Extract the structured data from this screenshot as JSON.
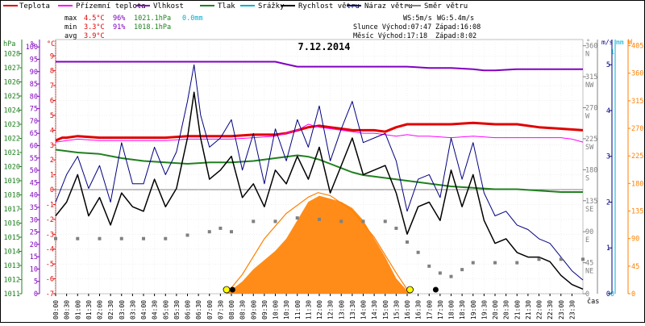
{
  "colors": {
    "temperature": "#e00000",
    "ground_temperature": "#ff00ff",
    "humidity": "#8000c0",
    "pressure": "#208020",
    "rain": "#00b0d0",
    "wind_speed": "#000000",
    "wind_gust": "#000080",
    "wind_dir": "#808080",
    "sun": "#ff8000",
    "zero_line": "#808080"
  },
  "legend": [
    {
      "label": "Teplota",
      "color": "#e00000"
    },
    {
      "label": "Přízemní teplota",
      "color": "#ff00ff"
    },
    {
      "label": "Vlhkost",
      "color": "#8000c0"
    },
    {
      "label": "Tlak",
      "color": "#208020"
    },
    {
      "label": "Srážky",
      "color": "#00b0d0"
    },
    {
      "label": "Rychlost větru",
      "color": "#000000"
    },
    {
      "label": "Náraz větru",
      "color": "#000080"
    },
    {
      "label": "Směr větru",
      "color": "#808080"
    }
  ],
  "stats": {
    "max_label": "max",
    "max_temp": "4.5°C",
    "max_hum": "96%",
    "max_press": "1021.1hPa",
    "max_rain": "0.0mm",
    "min_label": "min",
    "min_temp": "3.3°C",
    "min_hum": "91%",
    "min_press": "1018.1hPa",
    "avg_label": "avg",
    "avg_temp": "3.9°C"
  },
  "sun_info": {
    "ws": "WS:5m/s",
    "wg": "WG:5.4m/s",
    "sunrise": "Slunce Východ:07:47",
    "sunset": "Západ:16:08",
    "moonrise": "Měsíc Východ:17:18",
    "moonset": "Západ:8:02"
  },
  "date_label": "7.12.2014",
  "axis_labels": {
    "hpa": "hPa",
    "pct": "%",
    "degc": "°C",
    "deg": "°",
    "ms": "m/s",
    "mm": "mm",
    "wm2": "W",
    "time": "čas"
  },
  "chart_data": {
    "type": "line",
    "x_unit": "hour",
    "x_range": [
      0,
      24
    ],
    "x_tick_labels": [
      "00:00",
      "00:30",
      "01:00",
      "01:30",
      "02:00",
      "02:30",
      "03:00",
      "03:30",
      "04:00",
      "04:30",
      "05:00",
      "05:30",
      "06:00",
      "06:30",
      "07:00",
      "07:30",
      "08:00",
      "08:30",
      "09:00",
      "09:30",
      "10:00",
      "10:30",
      "11:00",
      "11:30",
      "12:00",
      "12:30",
      "13:00",
      "13:30",
      "14:00",
      "14:30",
      "15:00",
      "15:30",
      "16:00",
      "16:30",
      "17:00",
      "17:30",
      "18:00",
      "18:30",
      "19:00",
      "19:30",
      "20:00",
      "20:30",
      "21:00",
      "21:30",
      "22:00",
      "22:30",
      "23:00",
      "23:30"
    ],
    "axes": {
      "pressure_hpa": {
        "range": [
          1011,
          1029
        ],
        "ticks": [
          1011,
          1012,
          1013,
          1014,
          1015,
          1016,
          1017,
          1018,
          1019,
          1020,
          1021,
          1022,
          1023,
          1024,
          1025,
          1026,
          1027,
          1028
        ]
      },
      "humidity_pct": {
        "range": [
          0,
          103
        ],
        "ticks": [
          0,
          5,
          10,
          15,
          20,
          25,
          30,
          35,
          40,
          45,
          50,
          55,
          60,
          65,
          70,
          75,
          80,
          85,
          90,
          95,
          100
        ]
      },
      "temp_c": {
        "range": [
          -7,
          10.1
        ],
        "ticks": [
          -7,
          -6,
          -5,
          -4,
          -3,
          -2,
          -1,
          0,
          1,
          2,
          3,
          4,
          5,
          6,
          7,
          8,
          9
        ]
      },
      "wind_dir_deg": {
        "range": [
          0,
          369
        ],
        "ticks": [
          {
            "v": 0,
            "label": "0"
          },
          {
            "v": 45,
            "label": "45"
          },
          {
            "v": 90,
            "label": "90"
          },
          {
            "v": 135,
            "label": "135"
          },
          {
            "v": 180,
            "label": "180"
          },
          {
            "v": 225,
            "label": "225"
          },
          {
            "v": 270,
            "label": "270"
          },
          {
            "v": 315,
            "label": "315"
          },
          {
            "v": 360,
            "label": "360"
          }
        ],
        "compass": [
          {
            "v": 45,
            "label": "NE"
          },
          {
            "v": 90,
            "label": "E"
          },
          {
            "v": 135,
            "label": "SE"
          },
          {
            "v": 180,
            "label": "S"
          },
          {
            "v": 225,
            "label": "SW"
          },
          {
            "v": 270,
            "label": "W"
          },
          {
            "v": 315,
            "label": "NW"
          },
          {
            "v": 360,
            "label": "N"
          }
        ]
      },
      "wind_ms": {
        "range": [
          0,
          5.55
        ],
        "ticks": [
          0,
          1,
          2,
          3,
          4,
          5
        ]
      },
      "rain_mm": {
        "ticks": [
          {
            "v": 0,
            "label": "0"
          },
          {
            "v": 1,
            "label": "1"
          }
        ]
      },
      "solar_w": {
        "range": [
          0,
          415
        ],
        "ticks": [
          0,
          45,
          90,
          135,
          180,
          225,
          270,
          315,
          360,
          405
        ]
      }
    },
    "series": [
      {
        "name": "Teplota",
        "axis": "temp_c",
        "color": "#e00000",
        "width": 3,
        "x": [
          0,
          0.3,
          0.5,
          1,
          2,
          3,
          4,
          5,
          6,
          7,
          8,
          9,
          10,
          10.5,
          11,
          11.5,
          12,
          12.5,
          13,
          13.5,
          14,
          14.5,
          15,
          15.5,
          16,
          16.5,
          17,
          18,
          19,
          20,
          21,
          22,
          23,
          24
        ],
        "y": [
          3.3,
          3.5,
          3.5,
          3.6,
          3.5,
          3.5,
          3.5,
          3.5,
          3.6,
          3.6,
          3.6,
          3.7,
          3.7,
          3.8,
          4.0,
          4.2,
          4.3,
          4.2,
          4.1,
          4.0,
          4.0,
          4.0,
          3.9,
          4.2,
          4.4,
          4.4,
          4.4,
          4.4,
          4.5,
          4.4,
          4.4,
          4.2,
          4.1,
          4.0
        ]
      },
      {
        "name": "Přízemní teplota",
        "axis": "temp_c",
        "color": "#ff00ff",
        "width": 1,
        "x": [
          0,
          0.5,
          1,
          2,
          3,
          4,
          5,
          6,
          7,
          8,
          9,
          10,
          10.5,
          11,
          11.5,
          12,
          12.5,
          13,
          13.5,
          14,
          14.5,
          15,
          15.5,
          16,
          16.5,
          17,
          18,
          19,
          20,
          21,
          22,
          23,
          23.5,
          24
        ],
        "y": [
          3.2,
          3.3,
          3.4,
          3.3,
          3.3,
          3.3,
          3.3,
          3.4,
          3.4,
          3.4,
          3.5,
          3.6,
          3.8,
          4.0,
          4.4,
          4.2,
          4.1,
          4.0,
          3.9,
          3.8,
          3.8,
          3.7,
          3.6,
          3.7,
          3.6,
          3.6,
          3.5,
          3.6,
          3.5,
          3.5,
          3.5,
          3.5,
          3.4,
          3.2
        ]
      },
      {
        "name": "Vlhkost",
        "axis": "humidity_pct",
        "color": "#8000c0",
        "width": 2,
        "x": [
          0,
          1,
          2,
          3,
          4,
          5,
          6,
          7,
          8,
          9,
          10,
          10.5,
          11,
          11.5,
          12,
          12.5,
          13,
          14,
          15,
          15.5,
          16,
          17,
          18,
          19,
          19.5,
          20,
          21,
          22,
          23,
          24
        ],
        "y": [
          94,
          94,
          94,
          94,
          94,
          94,
          94,
          94,
          94,
          94,
          94,
          93,
          92,
          92,
          92,
          92,
          92,
          92,
          92,
          92,
          92,
          91.5,
          91.5,
          91,
          90.5,
          90.5,
          91,
          91,
          91,
          91
        ]
      },
      {
        "name": "Tlak",
        "axis": "pressure_hpa",
        "color": "#208020",
        "width": 2,
        "x": [
          0,
          1,
          2,
          3,
          4,
          5,
          6,
          7,
          8,
          9,
          10,
          10.5,
          11,
          11.5,
          12,
          12.5,
          13,
          13.5,
          14,
          15,
          16,
          17,
          18,
          19,
          20,
          21,
          22,
          23,
          24
        ],
        "y": [
          1021.2,
          1021,
          1020.9,
          1020.6,
          1020.4,
          1020.3,
          1020.2,
          1020.3,
          1020.3,
          1020.4,
          1020.6,
          1020.7,
          1020.8,
          1020.7,
          1020.5,
          1020.2,
          1019.9,
          1019.6,
          1019.4,
          1019.2,
          1019.0,
          1018.8,
          1018.6,
          1018.5,
          1018.4,
          1018.4,
          1018.3,
          1018.2,
          1018.2
        ]
      },
      {
        "name": "Rychlost větru",
        "axis": "wind_ms",
        "color": "#000000",
        "width": 1.5,
        "x": [
          0,
          0.5,
          1,
          1.5,
          2,
          2.5,
          3,
          3.5,
          4,
          4.5,
          5,
          5.5,
          6,
          6.3,
          6.6,
          7,
          7.5,
          8,
          8.5,
          9,
          9.5,
          10,
          10.5,
          11,
          11.5,
          12,
          12.5,
          13,
          13.5,
          14,
          14.5,
          15,
          15.5,
          16,
          16.5,
          17,
          17.5,
          18,
          18.5,
          19,
          19.5,
          20,
          20.5,
          21,
          21.5,
          22,
          22.5,
          23,
          23.5,
          24
        ],
        "y": [
          1.7,
          2.0,
          2.6,
          1.7,
          2.1,
          1.5,
          2.2,
          1.9,
          1.8,
          2.5,
          1.9,
          2.3,
          3.4,
          4.4,
          3.4,
          2.5,
          2.7,
          3.0,
          2.1,
          2.4,
          1.9,
          2.7,
          2.4,
          3.0,
          2.5,
          3.2,
          2.2,
          2.8,
          3.4,
          2.6,
          2.7,
          2.8,
          2.2,
          1.3,
          1.9,
          2.0,
          1.6,
          2.7,
          1.9,
          2.6,
          1.6,
          1.1,
          1.2,
          0.9,
          0.8,
          0.8,
          0.7,
          0.4,
          0.2,
          0.1
        ]
      },
      {
        "name": "Náraz větru",
        "axis": "wind_ms",
        "color": "#000080",
        "width": 1,
        "x": [
          0,
          0.5,
          1,
          1.5,
          2,
          2.5,
          3,
          3.5,
          4,
          4.5,
          5,
          5.5,
          6,
          6.3,
          6.6,
          7,
          7.5,
          8,
          8.5,
          9,
          9.5,
          10,
          10.5,
          11,
          11.5,
          12,
          12.5,
          13,
          13.5,
          14,
          14.5,
          15,
          15.5,
          16,
          16.5,
          17,
          17.5,
          18,
          18.5,
          19,
          19.5,
          20,
          20.5,
          21,
          21.5,
          22,
          22.5,
          23,
          23.5,
          24
        ],
        "y": [
          2.0,
          2.6,
          3.0,
          2.3,
          2.8,
          2.0,
          3.3,
          2.4,
          2.4,
          3.2,
          2.6,
          3.1,
          4.2,
          5.0,
          3.9,
          3.2,
          3.4,
          3.8,
          2.7,
          3.5,
          2.4,
          3.6,
          2.9,
          3.8,
          3.2,
          4.1,
          2.9,
          3.6,
          4.2,
          3.3,
          3.4,
          3.5,
          2.9,
          1.8,
          2.5,
          2.6,
          2.1,
          3.4,
          2.5,
          3.3,
          2.2,
          1.7,
          1.8,
          1.5,
          1.4,
          1.2,
          1.1,
          0.8,
          0.5,
          0.3
        ]
      },
      {
        "name": "Směr větru",
        "axis": "wind_dir_deg",
        "color": "#808080",
        "width": 0,
        "x": [
          0,
          1,
          2,
          3,
          4,
          5,
          6,
          7,
          7.5,
          8,
          9,
          10,
          11,
          12,
          13,
          14,
          15,
          15.5,
          16,
          16.5,
          17,
          17.5,
          18,
          18.5,
          19,
          20,
          21,
          22,
          23,
          24
        ],
        "y": [
          80,
          80,
          80,
          80,
          80,
          80,
          85,
          90,
          95,
          90,
          105,
          105,
          110,
          108,
          105,
          105,
          105,
          95,
          75,
          60,
          40,
          30,
          25,
          35,
          45,
          45,
          45,
          50,
          50,
          50
        ]
      }
    ],
    "solar": {
      "name": "Slunce",
      "axis": "solar_w",
      "color": "#ff8000",
      "x": [
        7.78,
        8.5,
        9,
        9.5,
        10,
        10.5,
        11,
        11.5,
        12,
        12.5,
        13,
        13.5,
        14,
        14.5,
        15,
        15.5,
        16,
        16.13
      ],
      "y": [
        0,
        20,
        40,
        55,
        70,
        90,
        120,
        150,
        160,
        155,
        150,
        140,
        120,
        90,
        60,
        25,
        5,
        0
      ]
    },
    "sun_curve": {
      "x": [
        7.78,
        8.5,
        9.5,
        10.5,
        11.5,
        11.95,
        12.5,
        13.5,
        14.5,
        15.5,
        16.13
      ],
      "y": [
        0,
        1.3,
        3.7,
        5.4,
        6.5,
        6.8,
        6.6,
        5.6,
        3.8,
        1.4,
        0
      ]
    },
    "markers": [
      {
        "type": "sunrise",
        "x": 7.78
      },
      {
        "type": "moonset",
        "x": 8.05
      },
      {
        "type": "sunset",
        "x": 16.13
      },
      {
        "type": "moonrise",
        "x": 17.3
      }
    ]
  }
}
